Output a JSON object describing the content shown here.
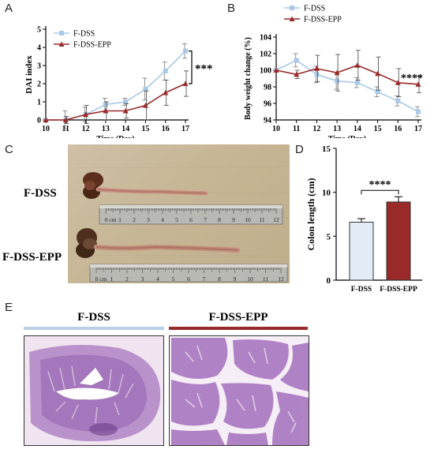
{
  "panels": {
    "a": {
      "letter": "A"
    },
    "b": {
      "letter": "B"
    },
    "c": {
      "letter": "C",
      "label_top": "F-DSS",
      "label_bottom": "F-DSS-EPP",
      "ruler_ticks": [
        "0 cm",
        "1",
        "2",
        "3",
        "4",
        "5",
        "6",
        "7",
        "8",
        "9",
        "10",
        "11",
        "12"
      ]
    },
    "d": {
      "letter": "D"
    },
    "e": {
      "letter": "E",
      "title_left": "F-DSS",
      "title_right": "F-DSS-EPP"
    }
  },
  "colors": {
    "fdss": "#a9c8e6",
    "fdss_epp": "#9a2a2a",
    "fdss_bar": "#e3ecf6"
  },
  "chart_data": [
    {
      "type": "line",
      "panel": "A",
      "xlabel": "Time (Day)",
      "ylabel": "DAI index",
      "x": [
        10,
        11,
        12,
        13,
        14,
        15,
        16,
        17
      ],
      "xlim": [
        10,
        17
      ],
      "ylim": [
        0,
        5
      ],
      "yticks": [
        0,
        1,
        2,
        3,
        4,
        5
      ],
      "legend": "top-left",
      "series": [
        {
          "name": "F-DSS",
          "values": [
            0,
            0,
            0.3,
            0.85,
            1.0,
            1.7,
            2.7,
            3.8
          ],
          "err": [
            0,
            0.5,
            0.4,
            0.35,
            0.2,
            0.6,
            0.5,
            0.4
          ]
        },
        {
          "name": "F-DSS-EPP",
          "values": [
            0,
            0,
            0.3,
            0.5,
            0.5,
            0.8,
            1.5,
            2.0
          ],
          "err": [
            0,
            0.2,
            0.5,
            0.5,
            0.4,
            0.8,
            0.7,
            0.7
          ]
        }
      ],
      "annotation": "***"
    },
    {
      "type": "line",
      "panel": "B",
      "xlabel": "Time (Day)",
      "ylabel": "Body weight change (%)",
      "x": [
        10,
        11,
        12,
        13,
        14,
        15,
        16,
        17
      ],
      "xlim": [
        10,
        17
      ],
      "ylim": [
        94,
        104
      ],
      "yticks": [
        94,
        96,
        98,
        100,
        102,
        104
      ],
      "legend": "top-left",
      "series": [
        {
          "name": "F-DSS",
          "values": [
            100,
            101.2,
            99.5,
            98.7,
            98.5,
            97.4,
            96.3,
            95.0
          ],
          "err": [
            0,
            0.8,
            1.0,
            1.0,
            0.6,
            0.6,
            0.6,
            0.6
          ]
        },
        {
          "name": "F-DSS-EPP",
          "values": [
            100,
            99.5,
            100.2,
            99.7,
            100.6,
            99.6,
            98.5,
            98.3
          ],
          "err": [
            0,
            0.5,
            1.6,
            2.2,
            1.8,
            2.0,
            1.7,
            1.0
          ]
        }
      ],
      "annotation": "****"
    },
    {
      "type": "bar",
      "panel": "D",
      "ylabel": "Colon length (cm)",
      "categories": [
        "F-DSS",
        "F-DSS-EPP"
      ],
      "values": [
        6.6,
        8.9
      ],
      "err": [
        0.4,
        0.6
      ],
      "ylim": [
        0,
        15
      ],
      "yticks": [
        0,
        5,
        10,
        15
      ],
      "annotation": "****"
    }
  ]
}
